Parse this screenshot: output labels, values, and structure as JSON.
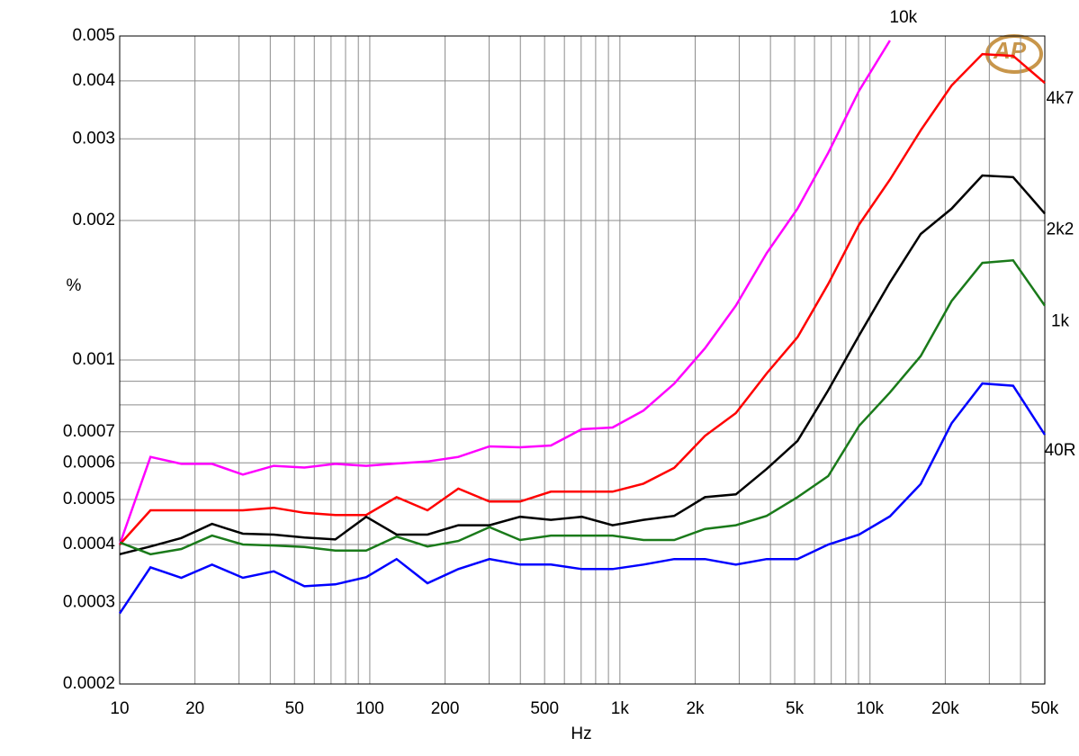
{
  "chart_data": {
    "type": "line",
    "x_label": "Hz",
    "y_label": "%",
    "logo": "AP",
    "xscale": "log",
    "yscale": "log",
    "grid": true,
    "xlim": [
      10,
      50000
    ],
    "ylim": [
      0.0002,
      0.005
    ],
    "xticks": [
      10,
      20,
      50,
      100,
      200,
      500,
      {
        "value": 1000,
        "label": "1k"
      },
      {
        "value": 2000,
        "label": "2k"
      },
      {
        "value": 5000,
        "label": "5k"
      },
      {
        "value": 10000,
        "label": "10k"
      },
      {
        "value": 20000,
        "label": "20k"
      },
      {
        "value": 50000,
        "label": "50k"
      }
    ],
    "xminor": [
      30,
      40,
      60,
      70,
      80,
      90,
      300,
      400,
      600,
      700,
      800,
      900,
      3000,
      4000,
      6000,
      7000,
      8000,
      9000,
      30000,
      40000
    ],
    "yticks": [
      0.0002,
      0.0003,
      0.0004,
      0.0005,
      0.0006,
      0.0007,
      0.001,
      0.002,
      0.003,
      0.004,
      0.005
    ],
    "yminor": [
      0.0008,
      0.0009
    ],
    "x": [
      10,
      13.28,
      17.64,
      23.4,
      31.1,
      41.3,
      54.8,
      72.8,
      96.7,
      128,
      170,
      226,
      301,
      399,
      530,
      704,
      935,
      1242,
      1649,
      2190,
      2908,
      3862,
      5129,
      6811,
      9046,
      12013,
      15953,
      21186,
      28135,
      37364,
      50000
    ],
    "series": [
      {
        "name": "10k",
        "color": "#ff00ff",
        "values": [
          0.0004,
          0.000618,
          0.000597,
          0.000597,
          0.000566,
          0.000591,
          0.000586,
          0.000597,
          0.000591,
          0.000598,
          0.000604,
          0.000618,
          0.000651,
          0.000648,
          0.000654,
          0.000709,
          0.000715,
          0.000778,
          0.000889,
          0.00106,
          0.00131,
          0.0017,
          0.00212,
          0.0028,
          0.00381,
          0.00489,
          null,
          null,
          null,
          null,
          null
        ]
      },
      {
        "name": "4k7",
        "color": "#ff0000",
        "values": [
          0.0004,
          0.000474,
          0.000474,
          0.000474,
          0.000474,
          0.00048,
          0.000468,
          0.000463,
          0.000463,
          0.000506,
          0.000474,
          0.000528,
          0.000495,
          0.000495,
          0.00052,
          0.00052,
          0.00052,
          0.000541,
          0.000585,
          0.000686,
          0.000768,
          0.000935,
          0.00112,
          0.00146,
          0.00196,
          0.00245,
          0.00313,
          0.00391,
          0.00457,
          0.00453,
          0.00396
        ]
      },
      {
        "name": "2k2",
        "color": "#000000",
        "values": [
          0.000381,
          0.000396,
          0.000413,
          0.000443,
          0.000422,
          0.00042,
          0.000414,
          0.00041,
          0.000459,
          0.00042,
          0.00042,
          0.00044,
          0.00044,
          0.000459,
          0.000452,
          0.000459,
          0.00044,
          0.000452,
          0.000461,
          0.000506,
          0.000513,
          0.000582,
          0.000669,
          0.000861,
          0.00113,
          0.00147,
          0.00187,
          0.00212,
          0.0025,
          0.00248,
          0.00207
        ]
      },
      {
        "name": "1k",
        "color": "#1a7a1a",
        "values": [
          0.000404,
          0.000381,
          0.000391,
          0.000418,
          0.0004,
          0.000398,
          0.000395,
          0.000388,
          0.000388,
          0.000416,
          0.000396,
          0.000407,
          0.000436,
          0.000409,
          0.000418,
          0.000418,
          0.000418,
          0.000409,
          0.000409,
          0.000432,
          0.00044,
          0.000461,
          0.000506,
          0.000562,
          0.000721,
          0.000851,
          0.00102,
          0.00134,
          0.00162,
          0.00164,
          0.00131
        ]
      },
      {
        "name": "40R",
        "color": "#0000ff",
        "values": [
          0.000284,
          0.000357,
          0.000339,
          0.000362,
          0.000339,
          0.00035,
          0.000325,
          0.000328,
          0.00034,
          0.000372,
          0.00033,
          0.000354,
          0.000372,
          0.000362,
          0.000362,
          0.000354,
          0.000354,
          0.000362,
          0.000372,
          0.000372,
          0.000362,
          0.000372,
          0.000372,
          0.0004,
          0.00042,
          0.00046,
          0.00054,
          0.00073,
          0.00089,
          0.00088,
          0.00069
        ]
      }
    ]
  }
}
